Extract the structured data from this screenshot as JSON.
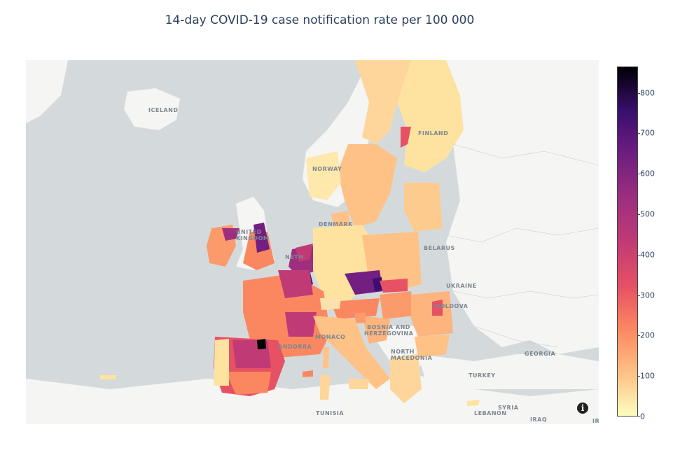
{
  "title": "14-day COVID-19 case notification rate per 100 000",
  "colorbar": {
    "colorscale": [
      "#fcfdbf",
      "#fec287",
      "#fb8761",
      "#e65164",
      "#c03a76",
      "#9e2f7f",
      "#721f81",
      "#3b0f70",
      "#000004"
    ],
    "range": [
      0,
      865
    ],
    "ticks": [
      "0",
      "100",
      "200",
      "300",
      "400",
      "500",
      "600",
      "700",
      "800"
    ]
  },
  "map_labels": {
    "iceland": "ICELAND",
    "norway": "NORWAY",
    "finland": "FINLAND",
    "denmark": "DENMARK",
    "united_kingdom": "UNITED KINGDOM",
    "netherlands": "NETH",
    "belarus": "BELARUS",
    "ukraine": "UKRAINE",
    "moldova": "MOLDOVA",
    "bosnia": "BOSNIA AND HERZEGOVINA",
    "north_macedonia": "NORTH MACEDONIA",
    "monaco": "MONACO",
    "andorra": "ANDORRA",
    "georgia": "GEORGIA",
    "turkey": "TURKEY",
    "syria": "SYRIA",
    "lebanon": "LEBANON",
    "iraq": "IRAQ",
    "tunisia": "TUNISIA",
    "iran": "IR"
  },
  "info_icon": "info-icon",
  "colors": {
    "sea": "#d4dadc",
    "land_background": "#f5f5f3",
    "title_color": "#2a3f5f"
  }
}
